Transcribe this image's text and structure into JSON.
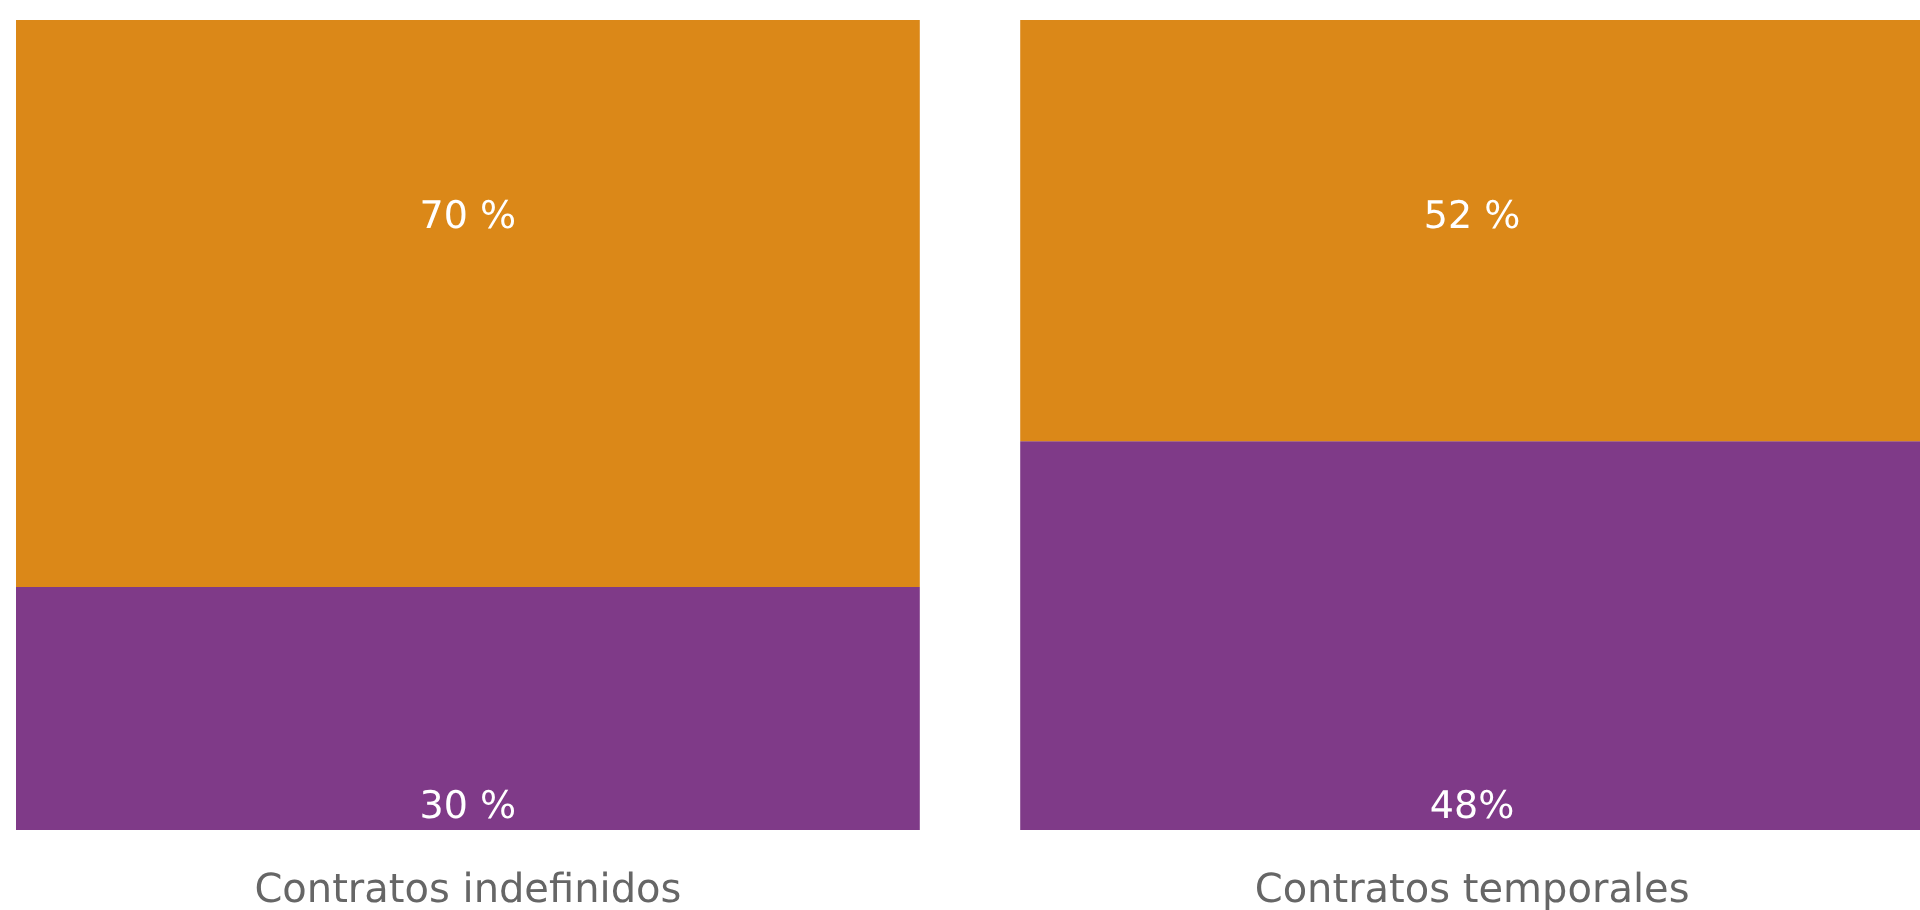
{
  "chart_data": {
    "type": "bar",
    "stacked": true,
    "categories": [
      "Contratos indefinidos",
      "Contratos temporales"
    ],
    "ylim": [
      0,
      100
    ],
    "series": [
      {
        "color": "#7f3a88",
        "values": [
          30,
          48
        ],
        "value_labels": [
          "30 %",
          "48%"
        ]
      },
      {
        "color": "#db8818",
        "values": [
          70,
          52
        ],
        "value_labels": [
          "70 %",
          "52 %"
        ]
      }
    ]
  }
}
